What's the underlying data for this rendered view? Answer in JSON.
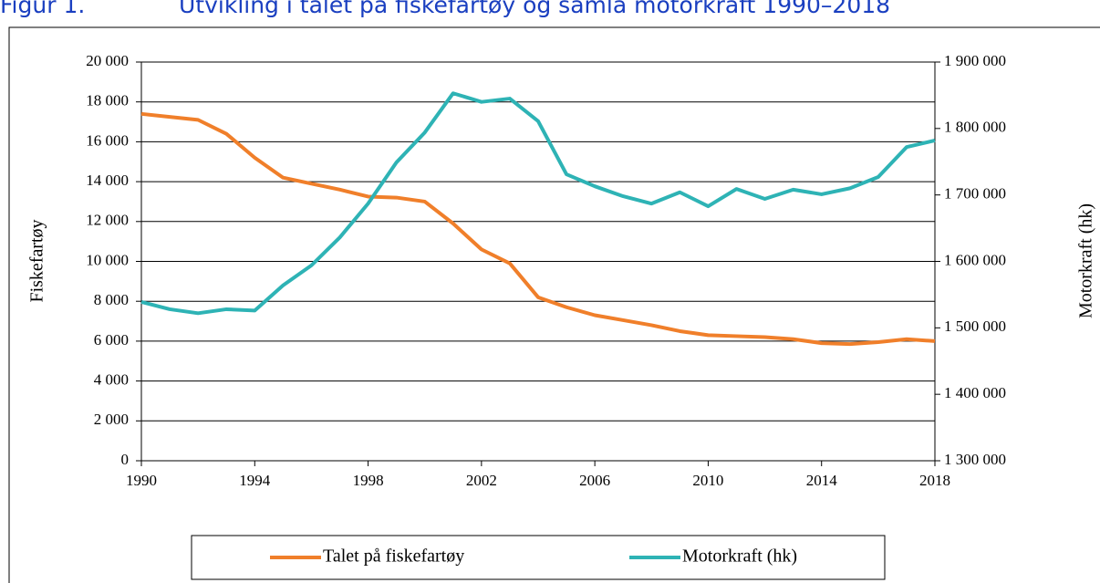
{
  "chart_data": {
    "type": "line",
    "title_number": "Figur 1.",
    "title": "Utvikling i talet på fiskefartøy og samla motorkraft 1990–2018",
    "y_label": "Fiskefartøy",
    "y2_label": "Motorkraft (hk)",
    "x": [
      1990,
      1991,
      1992,
      1993,
      1994,
      1995,
      1996,
      1997,
      1998,
      1999,
      2000,
      2001,
      2002,
      2003,
      2004,
      2005,
      2006,
      2007,
      2008,
      2009,
      2010,
      2011,
      2012,
      2013,
      2014,
      2015,
      2016,
      2017,
      2018
    ],
    "xlim": [
      1990,
      2018
    ],
    "xticks": [
      1990,
      1994,
      1998,
      2002,
      2006,
      2010,
      2014,
      2018
    ],
    "ylim": [
      0,
      20000
    ],
    "yticks": [
      0,
      {
        "value": 2000,
        "label": "2 000"
      },
      {
        "value": 4000,
        "label": "4 000"
      },
      {
        "value": 6000,
        "label": "6 000"
      },
      {
        "value": 8000,
        "label": "8 000"
      },
      {
        "value": 10000,
        "label": "10 000"
      },
      {
        "value": 12000,
        "label": "12 000"
      },
      {
        "value": 14000,
        "label": "14 000"
      },
      {
        "value": 16000,
        "label": "16 000"
      },
      {
        "value": 18000,
        "label": "18 000"
      },
      {
        "value": 20000,
        "label": "20 000"
      }
    ],
    "y2lim": [
      1300000,
      1900000
    ],
    "y2ticks": [
      {
        "value": 1300000,
        "label": "1 300 000"
      },
      {
        "value": 1400000,
        "label": "1 400 000"
      },
      {
        "value": 1500000,
        "label": "1 500 000"
      },
      {
        "value": 1600000,
        "label": "1 600 000"
      },
      {
        "value": 1700000,
        "label": "1 700 000"
      },
      {
        "value": 1800000,
        "label": "1 800 000"
      },
      {
        "value": 1900000,
        "label": "1 900 000"
      }
    ],
    "grid": true,
    "legend": "bottom",
    "series": [
      {
        "name": "Talet på fiskefartøy",
        "color": "#f07f2a",
        "values": [
          17400,
          17250,
          17100,
          16400,
          15200,
          14200,
          13900,
          13600,
          13250,
          13200,
          13000,
          11900,
          10600,
          9900,
          8200,
          7700,
          7300,
          7050,
          6800,
          6500,
          6300,
          6250,
          6200,
          6100,
          5900,
          5850,
          5950,
          6100,
          6000
        ]
      },
      {
        "name": "Motorkraft (hk)",
        "color": "#2eb3b5",
        "axis": "y2",
        "values": [
          1539000,
          1528000,
          1522000,
          1528000,
          1526000,
          1564000,
          1594000,
          1636000,
          1687000,
          1749000,
          1794000,
          1853000,
          1840000,
          1845000,
          1811000,
          1731000,
          1713000,
          1698000,
          1687000,
          1704000,
          1683000,
          1709000,
          1694000,
          1708000,
          1701000,
          1710000,
          1727000,
          1772000,
          1782000
        ]
      }
    ]
  }
}
